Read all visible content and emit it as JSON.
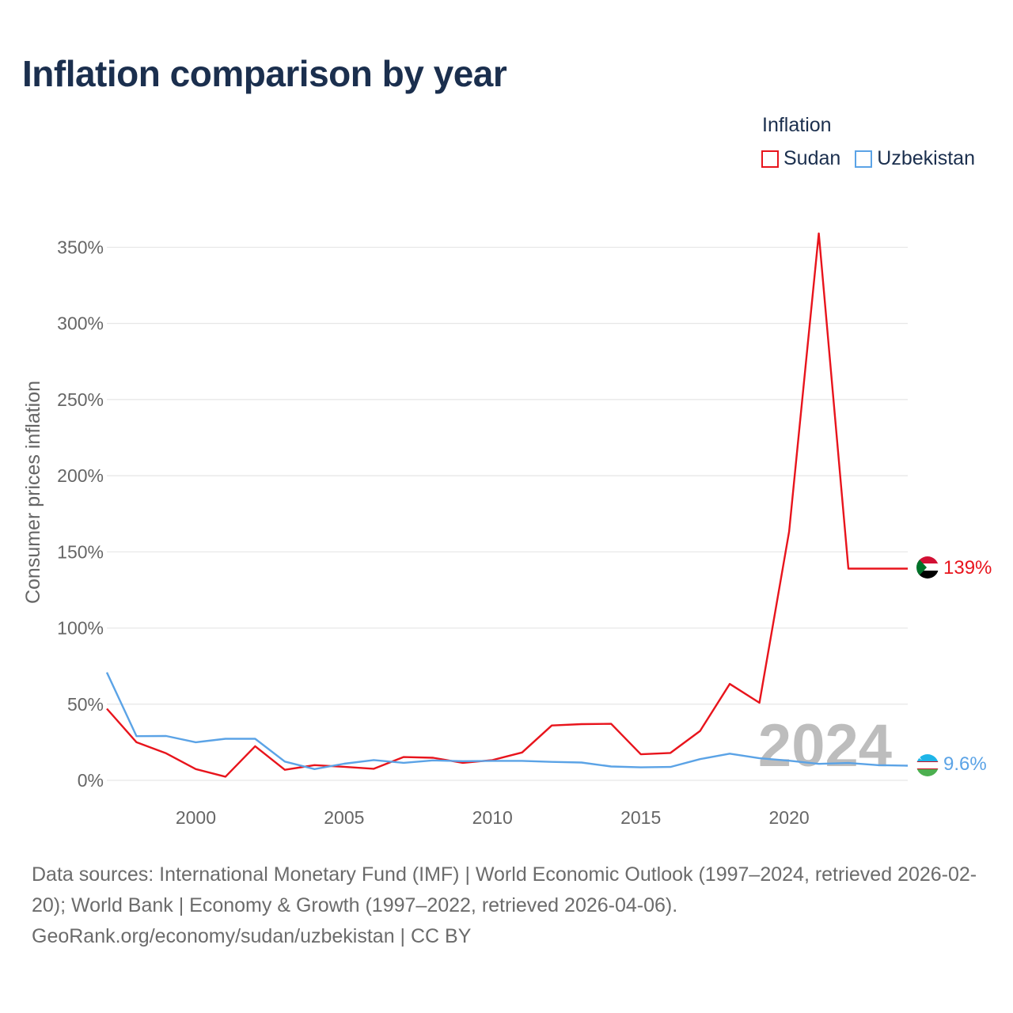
{
  "title": "Inflation comparison by year",
  "legend": {
    "title": "Inflation",
    "items": [
      {
        "label": "Sudan",
        "color": "#e8141c"
      },
      {
        "label": "Uzbekistan",
        "color": "#5ba3e6"
      }
    ]
  },
  "source": {
    "line1": "Data sources: International Monetary Fund (IMF) | World Economic Outlook (1997–2024, retrieved 2026-02-20); World Bank | Economy & Growth (1997–2022, retrieved 2026-04-06).",
    "line2": "GeoRank.org/economy/sudan/uzbekistan | CC BY"
  },
  "chart_data": {
    "type": "line",
    "title": "Inflation comparison by year",
    "xlabel": "",
    "ylabel": "Consumer prices inflation",
    "xlim": [
      1997,
      2024
    ],
    "ylim": [
      0,
      360
    ],
    "x_ticks": [
      2000,
      2005,
      2010,
      2015,
      2020
    ],
    "y_ticks": [
      0,
      50,
      100,
      150,
      200,
      250,
      300,
      350
    ],
    "y_tick_labels": [
      "0%",
      "50%",
      "100%",
      "150%",
      "200%",
      "250%",
      "300%",
      "350%"
    ],
    "current_year": "2024",
    "x": [
      1997,
      1998,
      1999,
      2000,
      2001,
      2002,
      2003,
      2004,
      2005,
      2006,
      2007,
      2008,
      2009,
      2010,
      2011,
      2012,
      2013,
      2014,
      2015,
      2016,
      2017,
      2018,
      2019,
      2020,
      2021,
      2022,
      2023,
      2024
    ],
    "series": [
      {
        "name": "Sudan",
        "color": "#e8141c",
        "end_label": "139%",
        "values": [
          47,
          25,
          17.7,
          7.4,
          2.4,
          22.4,
          6.9,
          10,
          8.9,
          7.6,
          15.3,
          14.8,
          11.5,
          13.3,
          18.3,
          36,
          36.9,
          37.1,
          17.1,
          18,
          32.4,
          63.3,
          50.9,
          163.3,
          359.1,
          139,
          139,
          139
        ]
      },
      {
        "name": "Uzbekistan",
        "color": "#5ba3e6",
        "end_label": "9.6%",
        "values": [
          70.9,
          29,
          29.1,
          25,
          27.3,
          27.3,
          12.3,
          7.4,
          10.9,
          13.3,
          11.5,
          13.1,
          12.6,
          12.8,
          12.8,
          12.1,
          11.7,
          9.1,
          8.5,
          8.8,
          13.9,
          17.5,
          14.5,
          12.9,
          10.8,
          11.4,
          10,
          9.6
        ]
      }
    ]
  }
}
